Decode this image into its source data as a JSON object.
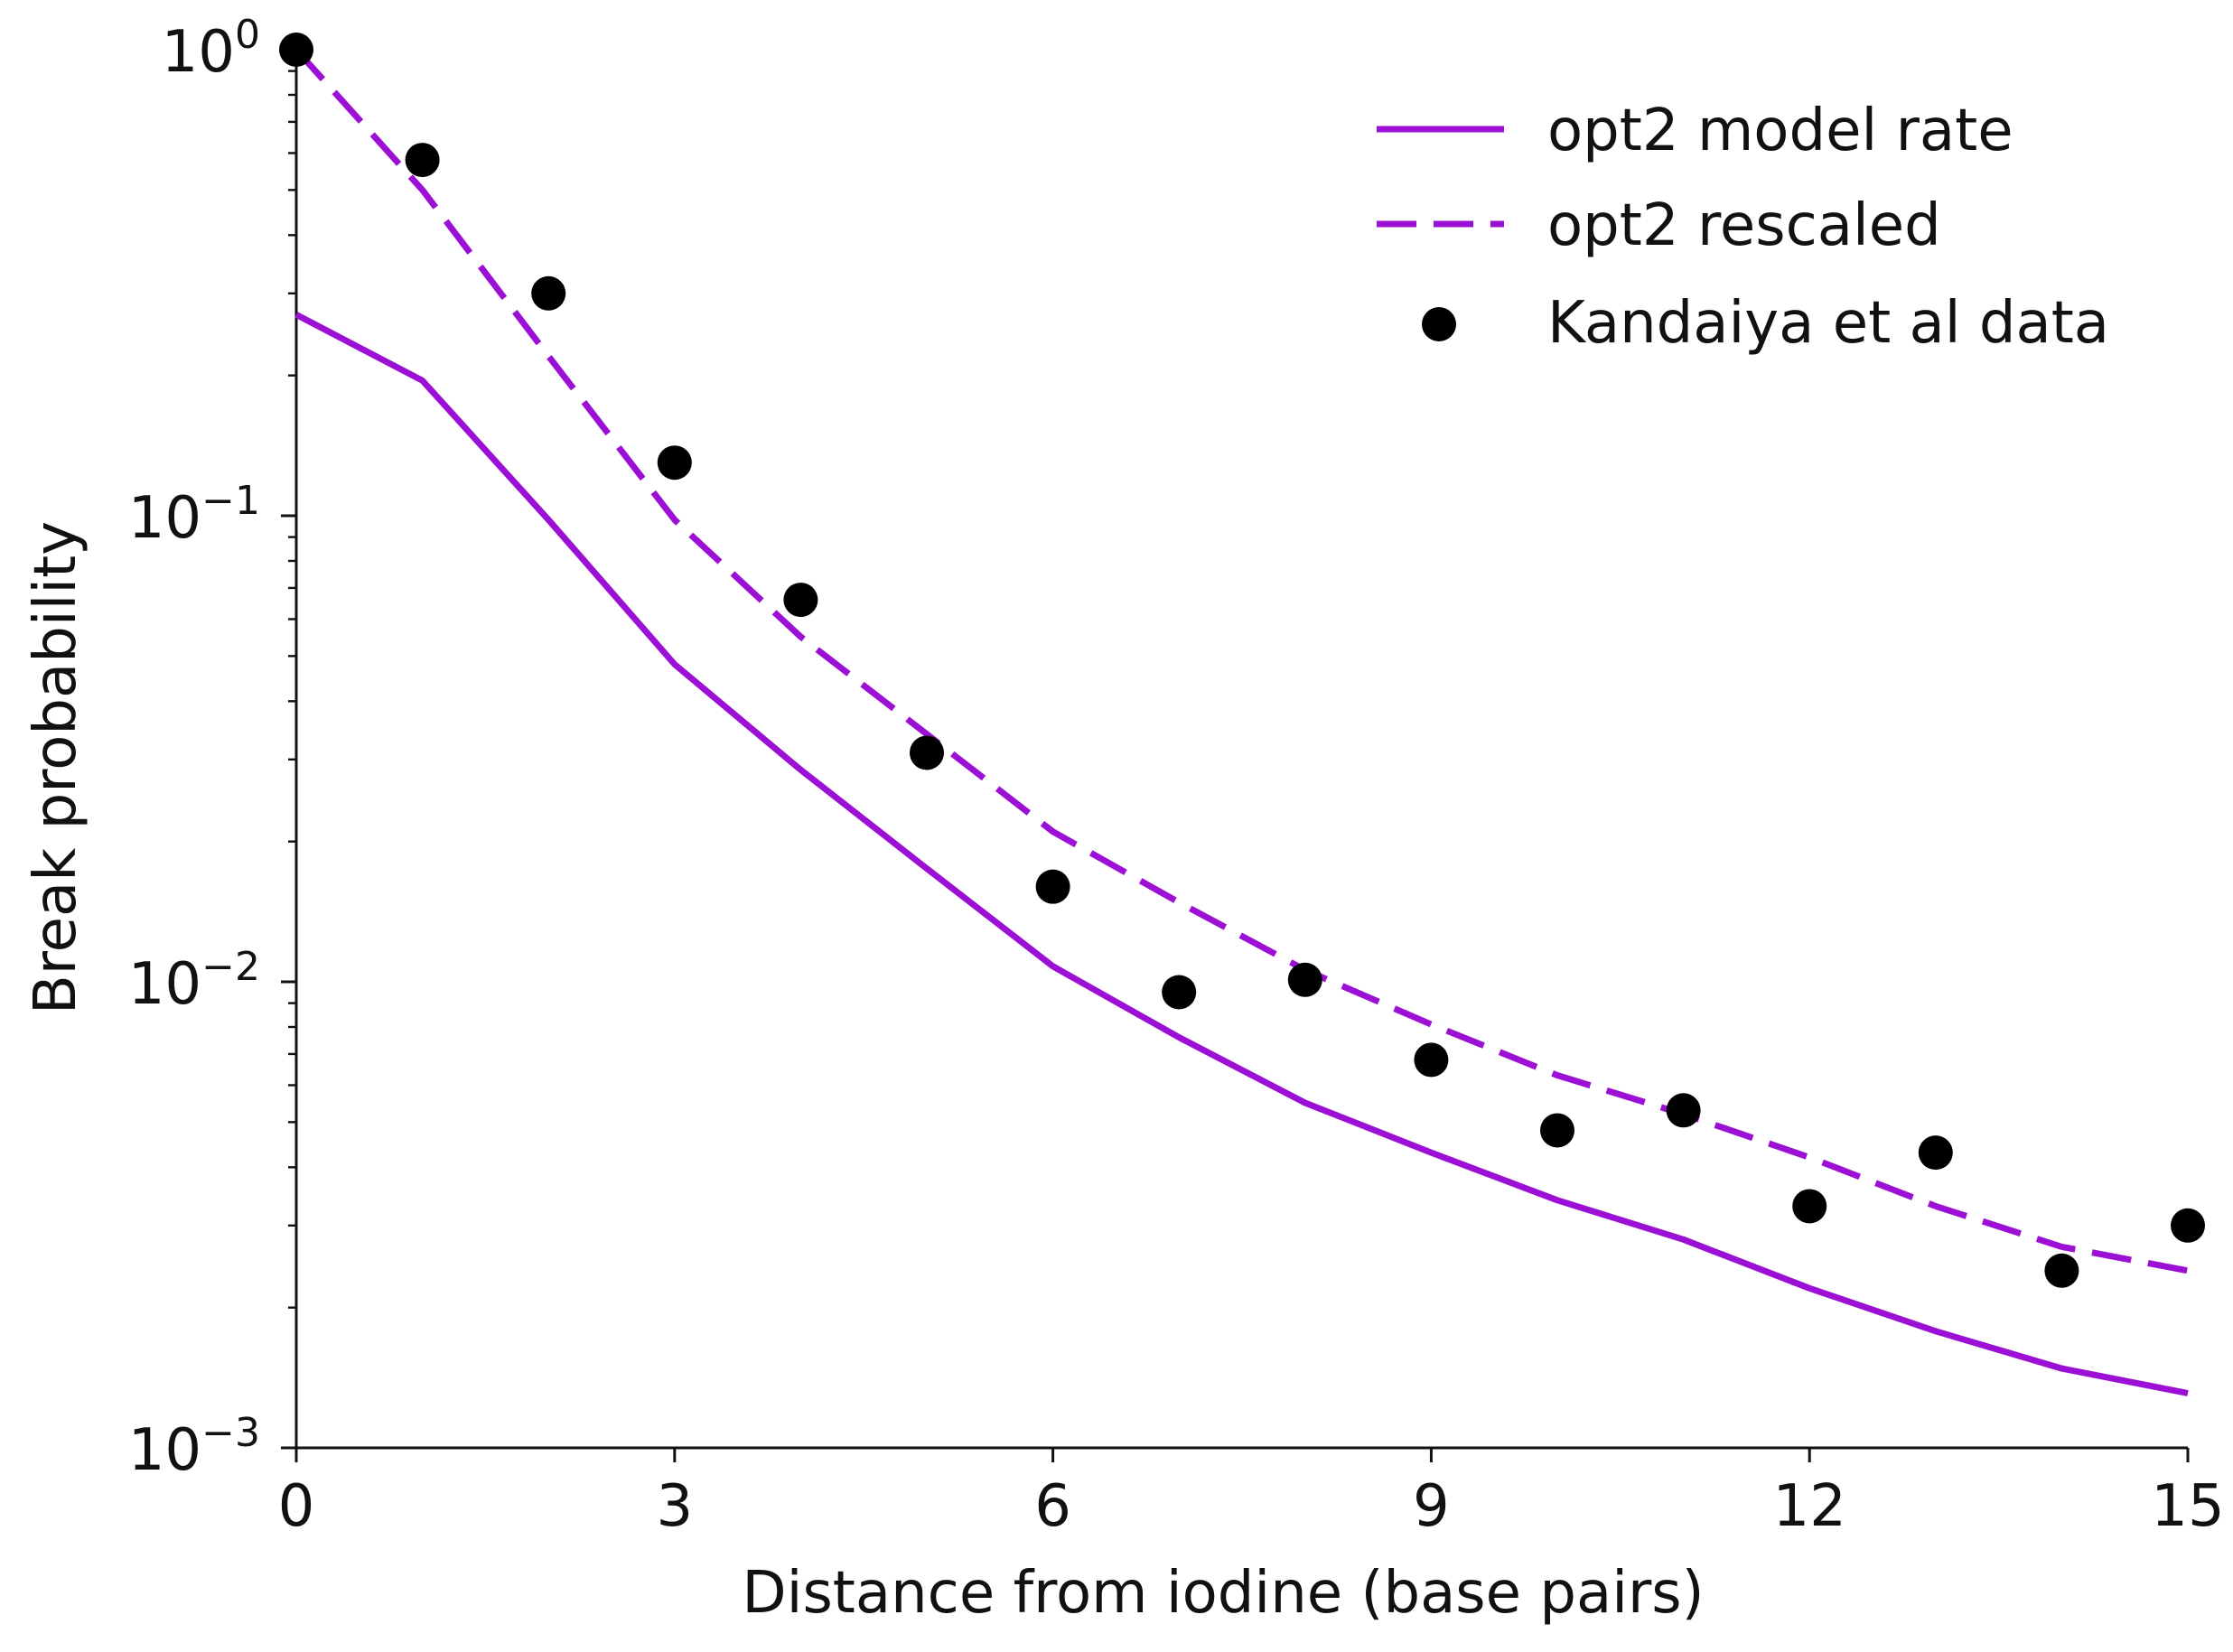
{
  "chart_data": {
    "type": "line",
    "title": "",
    "xlabel": "Distance from iodine (base pairs)",
    "ylabel": "Break probability",
    "xlim": [
      0,
      15
    ],
    "ylim": [
      0.001,
      1
    ],
    "yscale": "log",
    "grid": false,
    "legend_position": "top-right",
    "x_ticks": [
      {
        "value": 0,
        "label": "0"
      },
      {
        "value": 3,
        "label": "3"
      },
      {
        "value": 6,
        "label": "6"
      },
      {
        "value": 9,
        "label": "9"
      },
      {
        "value": 12,
        "label": "12"
      },
      {
        "value": 15,
        "label": "15"
      }
    ],
    "y_ticks": [
      {
        "value": 1,
        "base": "10",
        "exp": "0"
      },
      {
        "value": 0.1,
        "base": "10",
        "exp": "−1"
      },
      {
        "value": 0.01,
        "base": "10",
        "exp": "−2"
      },
      {
        "value": 0.001,
        "base": "10",
        "exp": "−3"
      }
    ],
    "x": [
      0,
      1,
      2,
      3,
      4,
      5,
      6,
      7,
      8,
      9,
      10,
      11,
      12,
      13,
      14,
      15
    ],
    "series": [
      {
        "name": "opt2 model rate",
        "style": "solid",
        "color": "#9b10d4",
        "values": [
          0.27,
          0.195,
          0.098,
          0.048,
          0.0285,
          0.0175,
          0.0108,
          0.0076,
          0.0055,
          0.0043,
          0.0034,
          0.0028,
          0.0022,
          0.00178,
          0.00148,
          0.00131
        ]
      },
      {
        "name": "opt2 rescaled",
        "style": "dashed",
        "color": "#9b10d4",
        "values": [
          1.0,
          0.5,
          0.22,
          0.098,
          0.055,
          0.034,
          0.021,
          0.0148,
          0.0106,
          0.0081,
          0.0063,
          0.0052,
          0.0042,
          0.0033,
          0.0027,
          0.0024
        ]
      },
      {
        "name": "Kandaiya et al data",
        "style": "scatter",
        "color": "#000000",
        "values": [
          1.0,
          0.58,
          0.3,
          0.13,
          0.066,
          0.031,
          0.016,
          0.0095,
          0.0101,
          0.0068,
          0.0048,
          0.0053,
          0.0033,
          0.0043,
          0.0024,
          0.003
        ]
      }
    ]
  }
}
